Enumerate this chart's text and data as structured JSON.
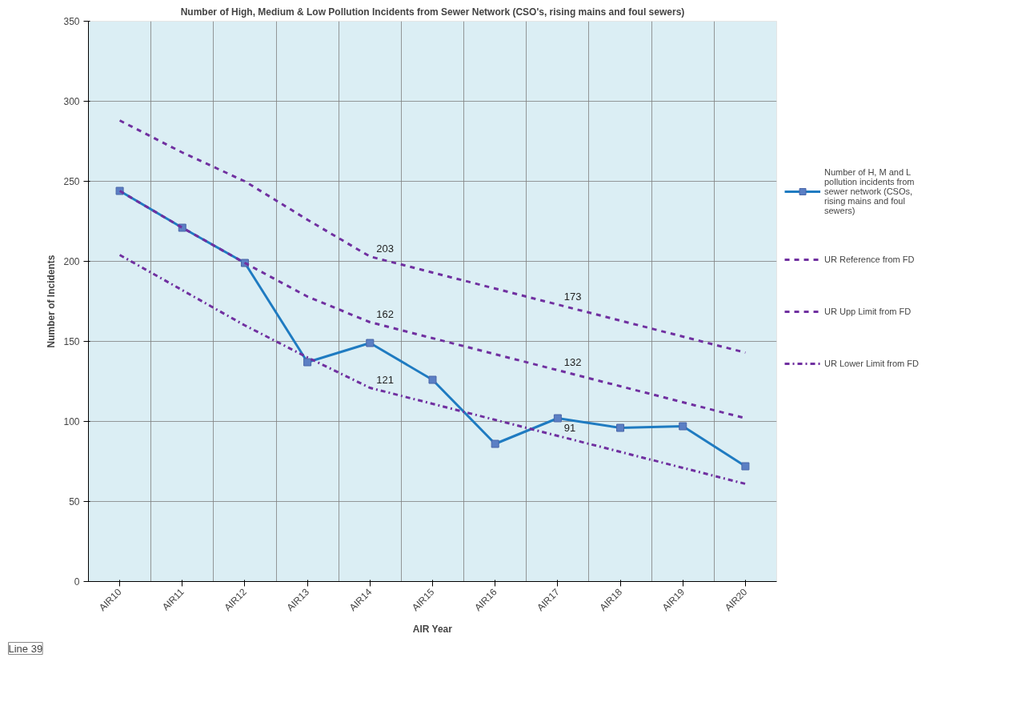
{
  "chart_data": {
    "type": "line",
    "title": "Number of High, Medium & Low Pollution Incidents from Sewer Network (CSO's, rising mains and foul sewers)",
    "xlabel": "AIR Year",
    "ylabel": "Number of Incidents",
    "categories": [
      "AIR10",
      "AIR11",
      "AIR12",
      "AIR13",
      "AIR14",
      "AIR15",
      "AIR16",
      "AIR17",
      "AIR18",
      "AIR19",
      "AIR20"
    ],
    "series": [
      {
        "name": "Number of H, M and L pollution incidents from sewer network (CSOs, rising mains and foul sewers)",
        "color": "#1f7bc1",
        "marker": "square",
        "line_style": "solid",
        "values": [
          244,
          221,
          199,
          137,
          149,
          126,
          86,
          102,
          96,
          97,
          72
        ]
      },
      {
        "name": "UR Reference from FD",
        "color": "#7030a0",
        "marker": "none",
        "line_style": "dashed",
        "values": [
          244,
          221,
          199,
          178,
          162,
          152,
          142,
          132,
          122,
          112,
          102
        ],
        "value_labels": [
          null,
          null,
          null,
          null,
          "162",
          null,
          null,
          "132",
          null,
          null,
          null
        ]
      },
      {
        "name": "UR Upp Limit from FD",
        "color": "#7030a0",
        "marker": "none",
        "line_style": "dashed",
        "values": [
          288,
          268,
          250,
          226,
          203,
          193,
          183,
          173,
          163,
          153,
          143
        ],
        "value_labels": [
          null,
          null,
          null,
          null,
          "203",
          null,
          null,
          "173",
          null,
          null,
          null
        ]
      },
      {
        "name": "UR Lower Limit from FD",
        "color": "#7030a0",
        "marker": "none",
        "line_style": "dashdot",
        "values": [
          204,
          182,
          160,
          140,
          121,
          111,
          101,
          91,
          81,
          71,
          61
        ],
        "value_labels": [
          null,
          null,
          null,
          null,
          "121",
          null,
          null,
          "91",
          null,
          null,
          null
        ]
      }
    ],
    "ylim": [
      0,
      350
    ],
    "yticks": [
      0,
      50,
      100,
      150,
      200,
      250,
      300,
      350
    ],
    "grid": true,
    "legend": "right",
    "annotations": [
      "Line 39"
    ]
  }
}
